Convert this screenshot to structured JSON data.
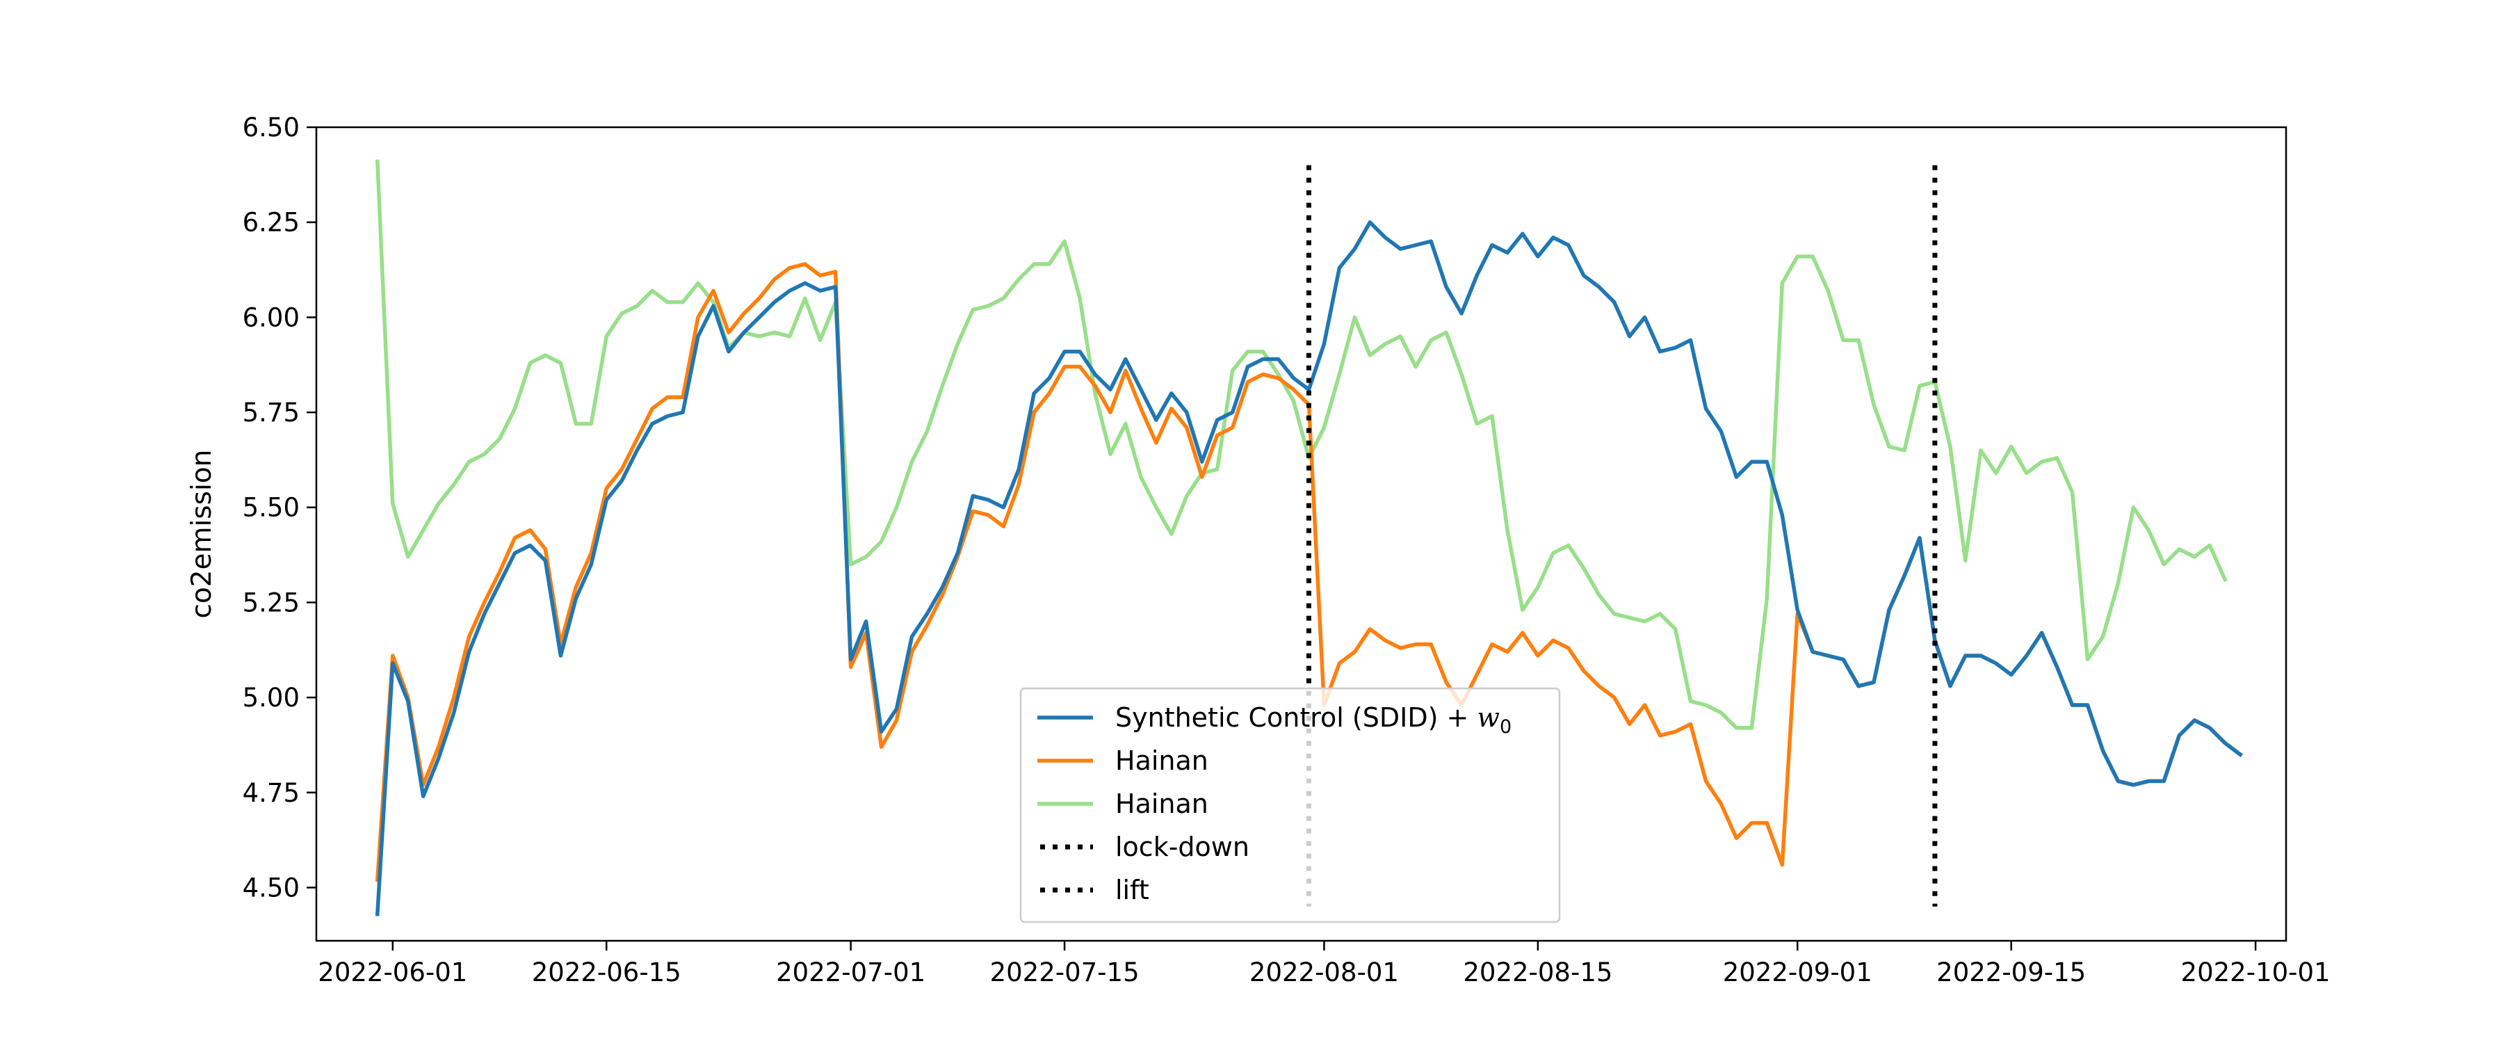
{
  "chart_data": {
    "type": "line",
    "title": "",
    "xlabel": "",
    "ylabel": "co2emission",
    "x_start": "2022-05-31",
    "x_step": "1 day",
    "xlim": [
      "2022-05-27",
      "2022-10-03"
    ],
    "ylim": [
      4.36,
      6.5
    ],
    "xticks": [
      "2022-06-01",
      "2022-06-15",
      "2022-07-01",
      "2022-07-15",
      "2022-08-01",
      "2022-08-15",
      "2022-09-01",
      "2022-09-15",
      "2022-10-01"
    ],
    "yticks": [
      "4.50",
      "4.75",
      "5.00",
      "5.25",
      "5.50",
      "5.75",
      "6.00",
      "6.25",
      "6.50"
    ],
    "grid": false,
    "legend_position": "lower center",
    "series": [
      {
        "name": "Synthetic Control (SDID) + w0",
        "color": "#1f77b4",
        "values": [
          4.43,
          5.09,
          4.99,
          4.74,
          4.84,
          4.96,
          5.12,
          5.22,
          5.3,
          5.38,
          5.4,
          5.36,
          5.11,
          5.26,
          5.35,
          5.52,
          5.57,
          5.65,
          5.72,
          5.74,
          5.75,
          5.95,
          6.03,
          5.91,
          5.96,
          6.0,
          6.04,
          6.07,
          6.09,
          6.07,
          6.08,
          5.1,
          5.2,
          4.91,
          4.97,
          5.16,
          5.22,
          5.29,
          5.38,
          5.53,
          5.52,
          5.5,
          5.6,
          5.8,
          5.84,
          5.91,
          5.91,
          5.85,
          5.81,
          5.89,
          5.81,
          5.73,
          5.8,
          5.75,
          5.62,
          5.73,
          5.75,
          5.87,
          5.89,
          5.89,
          5.84,
          5.81,
          5.93,
          6.13,
          6.18,
          6.25,
          6.21,
          6.18,
          6.19,
          6.2,
          6.08,
          6.01,
          6.11,
          6.19,
          6.17,
          6.22,
          6.16,
          6.21,
          6.19,
          6.11,
          6.08,
          6.04,
          5.95,
          6.0,
          5.91,
          5.92,
          5.94,
          5.76,
          5.7,
          5.58,
          5.62,
          5.62,
          5.48,
          5.23,
          5.12,
          5.11,
          5.1,
          5.03,
          5.04,
          5.23,
          5.32,
          5.42,
          5.15,
          5.03,
          5.11,
          5.11,
          5.09,
          5.06,
          5.11,
          5.17,
          5.08,
          4.98,
          4.98,
          4.86,
          4.78,
          4.77,
          4.78,
          4.78,
          4.9,
          4.94,
          4.92,
          4.88,
          4.85
        ]
      },
      {
        "name": "Hainan",
        "color": "#ff7f0e",
        "values": [
          4.52,
          5.11,
          5.0,
          4.77,
          4.87,
          5.0,
          5.16,
          5.25,
          5.33,
          5.42,
          5.44,
          5.39,
          5.14,
          5.29,
          5.38,
          5.55,
          5.6,
          5.68,
          5.76,
          5.79,
          5.79,
          6.0,
          6.07,
          5.96,
          6.01,
          6.05,
          6.1,
          6.13,
          6.14,
          6.11,
          6.12,
          5.08,
          5.17,
          4.87,
          4.94,
          5.12,
          5.19,
          5.27,
          5.37,
          5.49,
          5.48,
          5.45,
          5.56,
          5.75,
          5.8,
          5.87,
          5.87,
          5.82,
          5.75,
          5.86,
          5.76,
          5.67,
          5.76,
          5.71,
          5.58,
          5.69,
          5.71,
          5.83,
          5.85,
          5.84,
          5.81,
          5.77,
          4.98,
          5.09,
          5.12,
          5.18,
          5.15,
          5.13,
          5.14,
          5.14,
          5.04,
          4.98,
          5.06,
          5.14,
          5.12,
          5.17,
          5.11,
          5.15,
          5.13,
          5.07,
          5.03,
          5.0,
          4.93,
          4.98,
          4.9,
          4.91,
          4.93,
          4.78,
          4.72,
          4.63,
          4.67,
          4.67,
          4.56,
          5.22,
          5.12,
          5.11,
          5.1,
          5.03,
          5.04,
          5.23,
          5.32,
          5.42,
          5.15,
          5.03,
          5.11,
          5.11,
          5.09,
          5.06,
          5.11,
          5.17,
          5.08,
          4.98,
          4.98,
          4.86,
          4.78,
          4.77,
          4.78,
          4.78,
          4.9,
          4.94,
          4.92,
          4.88,
          4.85
        ]
      },
      {
        "name": "Hainan",
        "color": "#98df8a",
        "values": [
          6.41,
          5.51,
          5.37,
          5.44,
          5.51,
          5.56,
          5.62,
          5.64,
          5.68,
          5.76,
          5.88,
          5.9,
          5.88,
          5.72,
          5.72,
          5.95,
          6.01,
          6.03,
          6.07,
          6.04,
          6.04,
          6.09,
          6.04,
          5.92,
          5.96,
          5.95,
          5.96,
          5.95,
          6.05,
          5.94,
          6.04,
          5.35,
          5.37,
          5.41,
          5.5,
          5.62,
          5.7,
          5.82,
          5.93,
          6.02,
          6.03,
          6.05,
          6.1,
          6.14,
          6.14,
          6.2,
          6.05,
          5.8,
          5.64,
          5.72,
          5.58,
          5.5,
          5.43,
          5.53,
          5.59,
          5.6,
          5.86,
          5.91,
          5.91,
          5.85,
          5.78,
          5.63,
          5.71,
          5.85,
          6.0,
          5.9,
          5.93,
          5.95,
          5.87,
          5.94,
          5.96,
          5.85,
          5.72,
          5.74,
          5.44,
          5.23,
          5.29,
          5.38,
          5.4,
          5.34,
          5.27,
          5.22,
          5.21,
          5.2,
          5.22,
          5.18,
          4.99,
          4.98,
          4.96,
          4.92,
          4.92,
          5.26,
          6.09,
          6.16,
          6.16,
          6.07,
          5.94,
          5.94,
          5.77,
          5.66,
          5.65,
          5.82,
          5.83,
          5.66,
          5.36,
          5.65,
          5.59,
          5.66,
          5.59,
          5.62,
          5.63,
          5.54,
          5.1,
          5.16,
          5.3,
          5.5,
          5.44,
          5.35,
          5.39,
          5.37,
          5.4,
          5.31
        ]
      }
    ],
    "vlines": [
      {
        "name": "lock-down",
        "x": "2022-07-31",
        "color": "#000000",
        "style": "dotted"
      },
      {
        "name": "lift",
        "x": "2022-09-10",
        "color": "#000000",
        "style": "dotted"
      }
    ],
    "legend": [
      {
        "label_main": "Synthetic Control (SDID) + ",
        "label_math": "w",
        "label_sub": "0",
        "color": "#1f77b4",
        "style": "solid"
      },
      {
        "label_main": "Hainan",
        "color": "#ff7f0e",
        "style": "solid"
      },
      {
        "label_main": "Hainan",
        "color": "#98df8a",
        "style": "solid"
      },
      {
        "label_main": "lock-down",
        "color": "#000000",
        "style": "dotted"
      },
      {
        "label_main": "lift",
        "color": "#000000",
        "style": "dotted"
      }
    ]
  }
}
